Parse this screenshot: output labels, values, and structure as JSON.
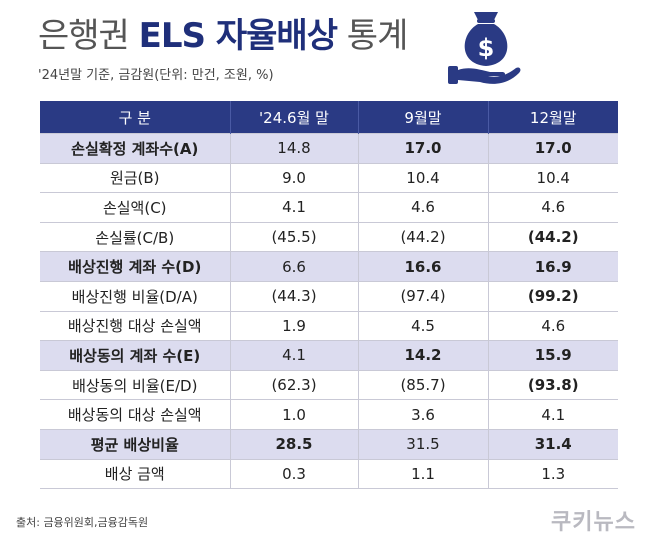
{
  "header": {
    "title_prefix": "은행권 ",
    "title_bold": "ELS 자율배상",
    "title_suffix": " 통계",
    "subtitle": "'24년말 기준, 금감원(단위: 만건, 조원, %)"
  },
  "icon": {
    "name": "money-bag-hand-icon",
    "symbol": "$",
    "color": "#2a3a84"
  },
  "table": {
    "headers": [
      "구 분",
      "'24.6월 말",
      "9월말",
      "12월말"
    ],
    "rows": [
      {
        "label": "손실확정 계좌수(A)",
        "v1": "14.8",
        "v2": "17.0",
        "v3": "17.0"
      },
      {
        "label": "원금(B)",
        "v1": "9.0",
        "v2": "10.4",
        "v3": "10.4"
      },
      {
        "label": "손실액(C)",
        "v1": "4.1",
        "v2": "4.6",
        "v3": "4.6"
      },
      {
        "label": "손실률(C/B)",
        "v1": "(45.5)",
        "v2": "(44.2)",
        "v3": "(44.2)"
      },
      {
        "label": "배상진행 계좌 수(D)",
        "v1": "6.6",
        "v2": "16.6",
        "v3": "16.9"
      },
      {
        "label": "배상진행 비율(D/A)",
        "v1": "(44.3)",
        "v2": "(97.4)",
        "v3": "(99.2)"
      },
      {
        "label": "배상진행 대상 손실액",
        "v1": "1.9",
        "v2": "4.5",
        "v3": "4.6"
      },
      {
        "label": "배상동의 계좌 수(E)",
        "v1": "4.1",
        "v2": "14.2",
        "v3": "15.9"
      },
      {
        "label": "배상동의 비율(E/D)",
        "v1": "(62.3)",
        "v2": "(85.7)",
        "v3": "(93.8)"
      },
      {
        "label": "배상동의 대상 손실액",
        "v1": "1.0",
        "v2": "3.6",
        "v3": "4.1"
      },
      {
        "label": "평균 배상비율",
        "v1": "28.5",
        "v2": "31.5",
        "v3": "31.4"
      },
      {
        "label": "배상 금액",
        "v1": "0.3",
        "v2": "1.1",
        "v3": "1.3"
      }
    ]
  },
  "footer": {
    "source": "출처: 금융위원회,금융감독원",
    "brand": "쿠키뉴스"
  }
}
